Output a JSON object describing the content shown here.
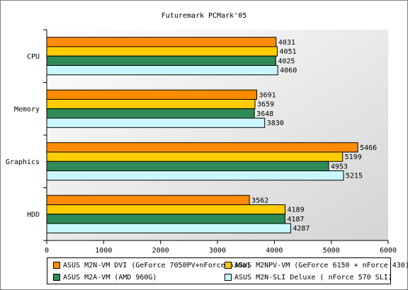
{
  "chart_data": {
    "type": "bar",
    "orientation": "horizontal",
    "title": "Futuremark PCMark'05",
    "categories": [
      "CPU",
      "Memory",
      "Graphics",
      "HDD"
    ],
    "series": [
      {
        "name": "ASUS M2N-VM DVI (GeForce 7050PV+nForce 630a)",
        "color": "#ff8c00",
        "values": [
          4031,
          3691,
          5466,
          3562
        ]
      },
      {
        "name": "ASUS M2NPV-VM (GeForce 6150 + nForce 430)",
        "color": "#ffcc00",
        "values": [
          4051,
          3659,
          5199,
          4189
        ]
      },
      {
        "name": "ASUS M2A-VM (AMD 960G)",
        "color": "#2e8b57",
        "values": [
          4025,
          3648,
          4953,
          4187
        ]
      },
      {
        "name": "ASUS M2N-SLI Deluxe ( nForce 570 SLI)",
        "color": "#c8f7ff",
        "values": [
          4060,
          3830,
          5215,
          4287
        ]
      }
    ],
    "xlim": [
      0,
      6000
    ],
    "xticks": [
      "0",
      "1000",
      "2000",
      "3000",
      "4000",
      "5000",
      "6000"
    ],
    "grid": false,
    "legend_position": "bottom"
  }
}
